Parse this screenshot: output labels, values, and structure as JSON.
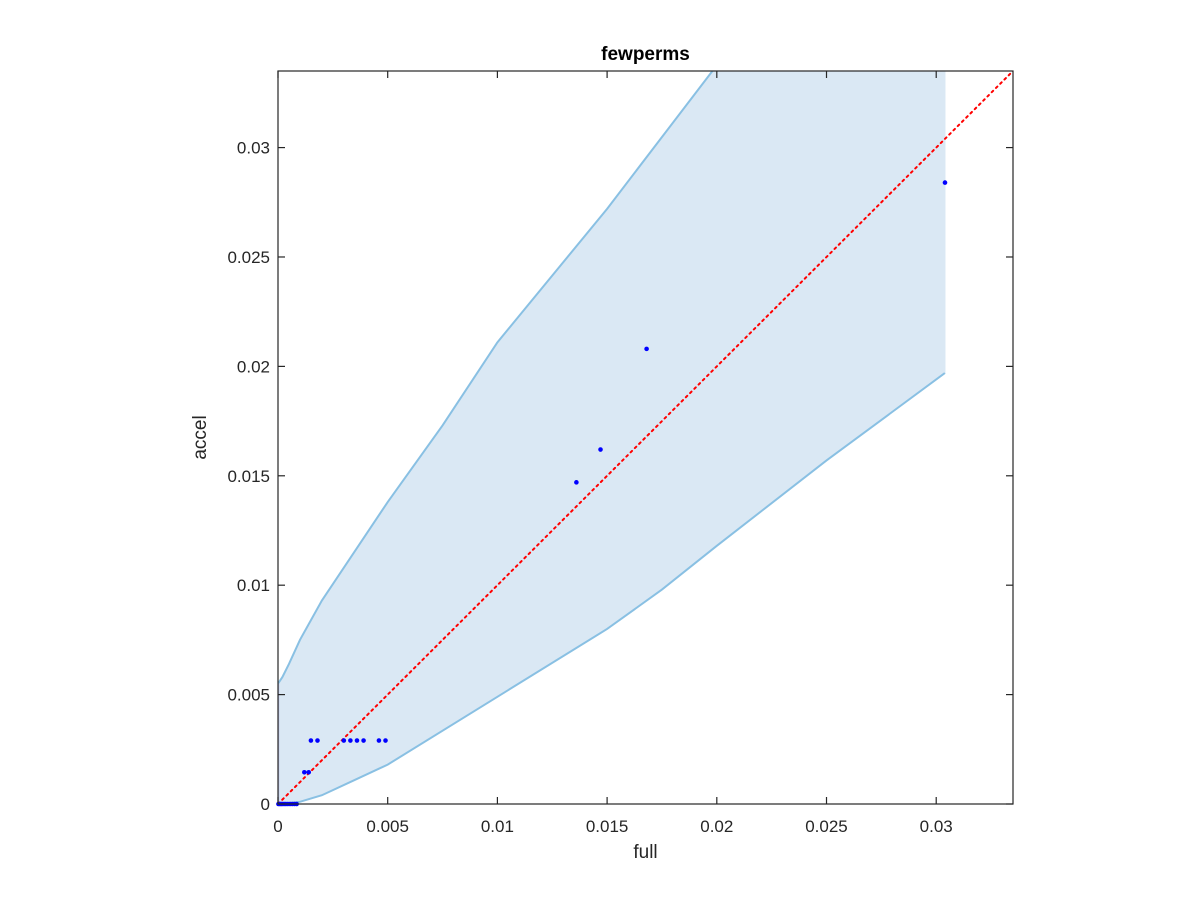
{
  "chart_data": {
    "type": "scatter",
    "title": "fewperms",
    "xlabel": "full",
    "ylabel": "accel",
    "xlim": [
      0,
      0.0335
    ],
    "ylim": [
      0,
      0.0335
    ],
    "xticks": [
      0,
      0.005,
      0.01,
      0.015,
      0.02,
      0.025,
      0.03
    ],
    "xtick_labels": [
      "0",
      "0.005",
      "0.01",
      "0.015",
      "0.02",
      "0.025",
      "0.03"
    ],
    "yticks": [
      0,
      0.005,
      0.01,
      0.015,
      0.02,
      0.025,
      0.03
    ],
    "ytick_labels": [
      "0",
      "0.005",
      "0.01",
      "0.015",
      "0.02",
      "0.025",
      "0.03"
    ],
    "grid": false,
    "colors": {
      "points": "#0000ff",
      "band_fill": "#dae8f4",
      "band_edge": "#89c0e3",
      "identity_line": "#ff0000",
      "axes": "#262626"
    },
    "confidence_band": {
      "upper": [
        {
          "x": 0,
          "y": 0.0055
        },
        {
          "x": 0.0002,
          "y": 0.0058
        },
        {
          "x": 0.0005,
          "y": 0.0064
        },
        {
          "x": 0.001,
          "y": 0.0075
        },
        {
          "x": 0.002,
          "y": 0.0093
        },
        {
          "x": 0.003,
          "y": 0.0108
        },
        {
          "x": 0.005,
          "y": 0.0138
        },
        {
          "x": 0.0075,
          "y": 0.0173
        },
        {
          "x": 0.01,
          "y": 0.0211
        },
        {
          "x": 0.015,
          "y": 0.0272
        },
        {
          "x": 0.0198,
          "y": 0.0335
        }
      ],
      "lower": [
        {
          "x": 0,
          "y": 0
        },
        {
          "x": 0.001,
          "y": 0.0001
        },
        {
          "x": 0.002,
          "y": 0.0004
        },
        {
          "x": 0.0035,
          "y": 0.0011
        },
        {
          "x": 0.005,
          "y": 0.0018
        },
        {
          "x": 0.01,
          "y": 0.0049
        },
        {
          "x": 0.015,
          "y": 0.008
        },
        {
          "x": 0.0175,
          "y": 0.0098
        },
        {
          "x": 0.02,
          "y": 0.0118
        },
        {
          "x": 0.025,
          "y": 0.0157
        },
        {
          "x": 0.0304,
          "y": 0.0197
        }
      ],
      "right_x": 0.0304
    },
    "identity_line": {
      "from": [
        0,
        0
      ],
      "to": [
        0.0335,
        0.0335
      ]
    },
    "series": [
      {
        "points": [
          {
            "x": 2e-05,
            "y": 0
          },
          {
            "x": 8e-05,
            "y": 0
          },
          {
            "x": 0.00014,
            "y": 0
          },
          {
            "x": 0.0002,
            "y": 0
          },
          {
            "x": 0.00028,
            "y": 0
          },
          {
            "x": 0.00036,
            "y": 0
          },
          {
            "x": 0.00045,
            "y": 0
          },
          {
            "x": 0.00055,
            "y": 0
          },
          {
            "x": 0.00065,
            "y": 0
          },
          {
            "x": 0.00075,
            "y": 0
          },
          {
            "x": 0.00085,
            "y": 0
          },
          {
            "x": 0.0012,
            "y": 0.00145
          },
          {
            "x": 0.0014,
            "y": 0.00145
          },
          {
            "x": 0.0015,
            "y": 0.0029
          },
          {
            "x": 0.0018,
            "y": 0.0029
          },
          {
            "x": 0.003,
            "y": 0.0029
          },
          {
            "x": 0.0033,
            "y": 0.0029
          },
          {
            "x": 0.0036,
            "y": 0.0029
          },
          {
            "x": 0.0039,
            "y": 0.0029
          },
          {
            "x": 0.0046,
            "y": 0.0029
          },
          {
            "x": 0.0049,
            "y": 0.0029
          },
          {
            "x": 0.0136,
            "y": 0.0147
          },
          {
            "x": 0.0147,
            "y": 0.0162
          },
          {
            "x": 0.0168,
            "y": 0.0208
          },
          {
            "x": 0.0304,
            "y": 0.0284
          }
        ]
      }
    ]
  }
}
